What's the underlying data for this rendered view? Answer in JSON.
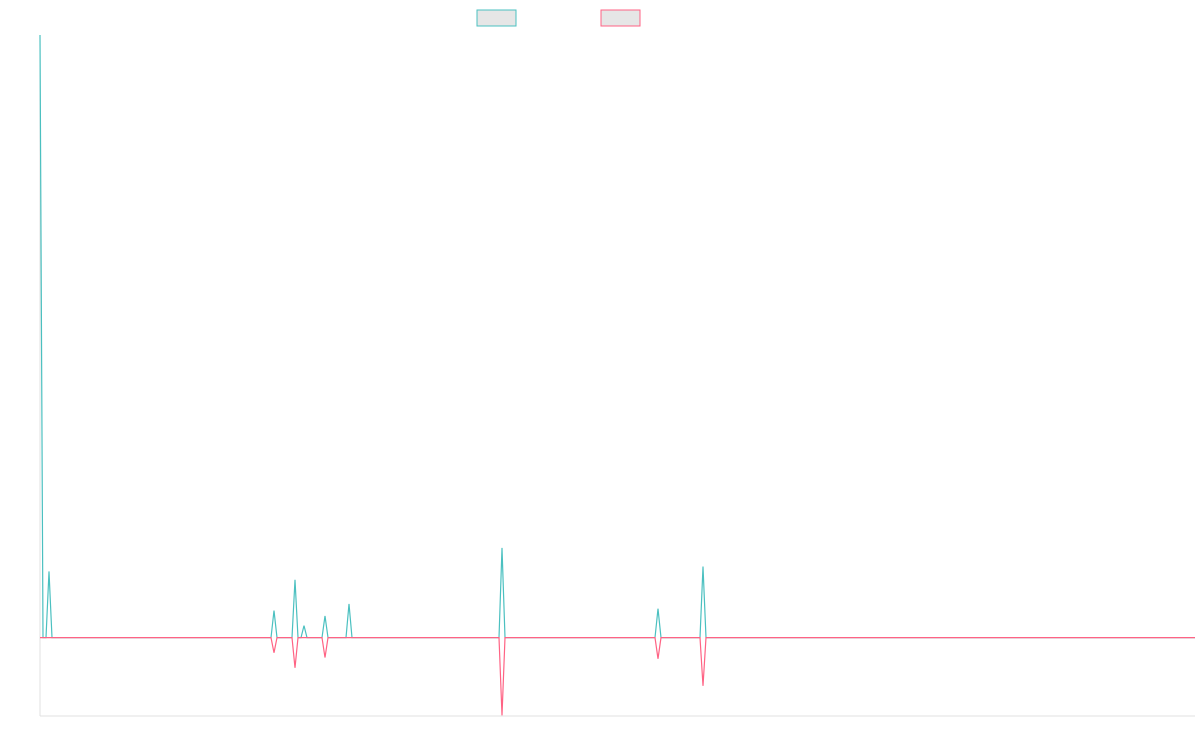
{
  "chart_data": {
    "type": "line",
    "x": [
      0,
      1,
      2,
      3,
      4,
      77,
      78,
      79,
      84,
      85,
      86,
      87,
      88,
      89,
      94,
      95,
      96,
      102,
      103,
      104,
      153,
      154,
      155,
      205,
      206,
      207,
      220,
      221,
      222,
      385
    ],
    "xlim": [
      0,
      385
    ],
    "ylim": [
      -13,
      100
    ],
    "series": [
      {
        "color": "#4bc0c0",
        "values": [
          100,
          0,
          0,
          11,
          0,
          0,
          4.5,
          0,
          0,
          9.6,
          0,
          0,
          2,
          0,
          0,
          3.6,
          0,
          0,
          5.6,
          0,
          0,
          14.9,
          0,
          0,
          4.8,
          0,
          0,
          11.8,
          0,
          0
        ]
      },
      {
        "color": "#ff6384",
        "values": [
          0,
          0,
          0,
          0,
          0,
          0,
          -2.5,
          0,
          0,
          -5,
          0,
          0,
          0,
          0,
          0,
          -3.3,
          0,
          0,
          0,
          0,
          0,
          -12.9,
          0,
          0,
          -3.5,
          0,
          0,
          -8,
          0,
          0
        ]
      }
    ]
  }
}
